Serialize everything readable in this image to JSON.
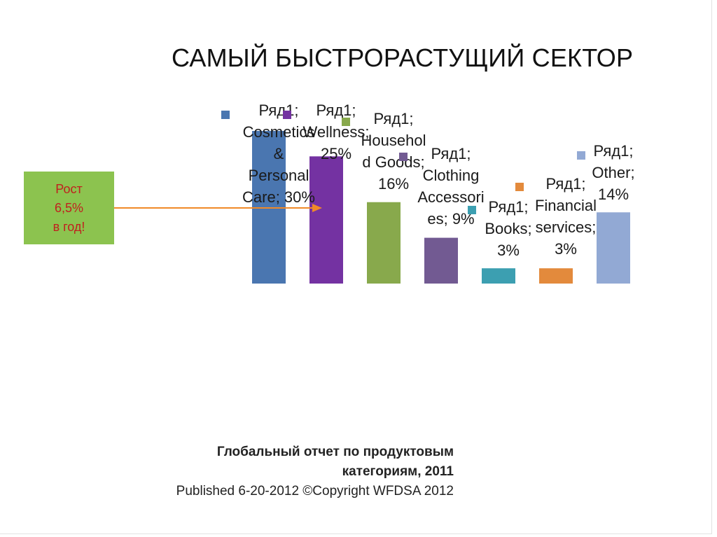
{
  "slide": {
    "title": "САМЫЙ БЫСТРОРАСТУЩИЙ СЕКТОР",
    "growth_box": {
      "line1": "Рост",
      "line2": "6,5%",
      "line3": "в год!",
      "fill_color": "#8cc34f",
      "text_color": "#c0211e",
      "arrow_color": "#f08a28"
    },
    "source": {
      "line1": "Глобальный отчет по продуктовым",
      "line2": "категориям, 2011",
      "line3": "Published 6-20-2012 ©Copyright WFDSA 2012"
    }
  },
  "chart_data": {
    "type": "bar",
    "series_name": "Ряд1",
    "categories": [
      "Cosmetics & Personal Care",
      "Wellness",
      "Household Goods",
      "Clothing Accessories",
      "Books",
      "Financial services",
      "Other"
    ],
    "values": [
      30,
      25,
      16,
      9,
      3,
      3,
      14
    ],
    "value_labels": [
      "30%",
      "25%",
      "16%",
      "9%",
      "3%",
      "3%",
      "14%"
    ],
    "colors": [
      "#4a76b0",
      "#7432a2",
      "#88a94c",
      "#725a92",
      "#3c9fb1",
      "#e38a3c",
      "#92a9d4"
    ],
    "data_labels": [
      [
        "Ряд1;",
        "Cosmetics",
        "&",
        "Personal",
        "Care; 30%"
      ],
      [
        "Ряд1;",
        "Wellness;",
        "25%"
      ],
      [
        "Ряд1;",
        "Househol",
        "d Goods;",
        "16%"
      ],
      [
        "Ряд1;",
        "Clothing",
        "Accessori",
        "es; 9%"
      ],
      [
        "Ряд1;",
        "Books;",
        "3%"
      ],
      [
        "Ряд1;",
        "Financial",
        "services;",
        "3%"
      ],
      [
        "Ряд1;",
        "Other;",
        "14%"
      ]
    ],
    "ylim": [
      0,
      30
    ],
    "grid": false,
    "legend": "none",
    "title": "",
    "xlabel": "",
    "ylabel": ""
  }
}
